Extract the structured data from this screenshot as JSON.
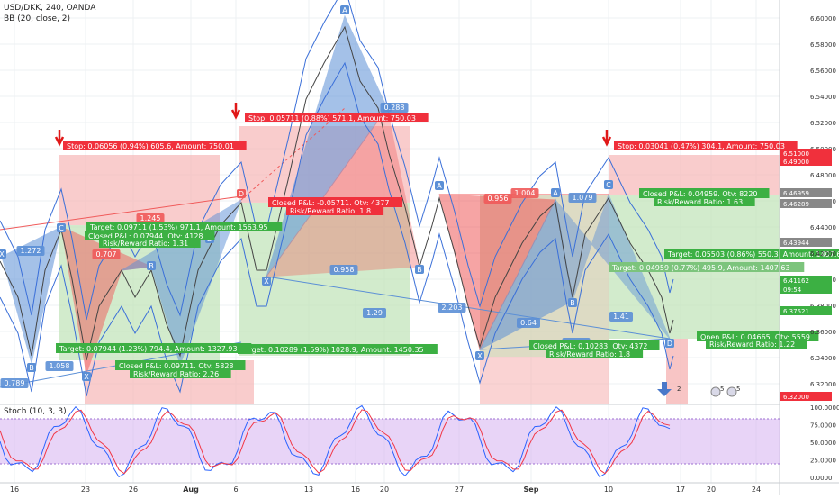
{
  "header": {
    "symbol_line": "USD/DKK, 240, OANDA",
    "indicator_line": "BB (20, close, 2)",
    "stoch_label": "Stoch (10, 3, 3)"
  },
  "colors": {
    "stop_zone": "#f6b6b6",
    "target_zone": "#bfe3b6",
    "label_red": "#f23645",
    "label_green": "#089981",
    "pattern_blue": "#5b8fd6",
    "pattern_red": "#f05a5a",
    "stoch_band": "#d9b8f2",
    "price_tag_red": "#f0303c",
    "price_tag_green": "#3cb043"
  },
  "price_axis": {
    "ticks": [
      "6.60000",
      "6.58000",
      "6.56000",
      "6.54000",
      "6.52000",
      "6.50000",
      "6.48000",
      "6.46000",
      "6.44000",
      "6.42000",
      "6.40000",
      "6.38000",
      "6.36000",
      "6.34000",
      "6.32000"
    ],
    "tags": [
      {
        "text": "6.51000",
        "kind": "red"
      },
      {
        "text": "6.49000",
        "kind": "red"
      },
      {
        "text": "6.46959",
        "kind": "grey"
      },
      {
        "text": "6.46289",
        "kind": "grey"
      },
      {
        "text": "6.43944",
        "kind": "grey"
      },
      {
        "text": "6.41162",
        "kind": "green"
      },
      {
        "text": "6.40554",
        "kind": "green"
      },
      {
        "text": "09:54",
        "kind": "green"
      },
      {
        "text": "6.37521",
        "kind": "green"
      },
      {
        "text": "6.32000",
        "kind": "red"
      }
    ]
  },
  "stoch_axis": {
    "ticks": [
      "100.0000",
      "75.0000",
      "50.0000",
      "25.0000",
      "0.0000"
    ]
  },
  "time_axis": {
    "labels": [
      "16",
      "23",
      "26",
      "Aug",
      "6",
      "13",
      "16",
      "20",
      "27",
      "Sep",
      "10",
      "17",
      "20",
      "24"
    ]
  },
  "trades": [
    {
      "stop": "Stop: 0.06056 (0.94%) 605.6, Amount: 750.01",
      "target": "Target: 0.09711 (1.53%) 971.1, Amount: 1563.95",
      "closed": "Closed P&L: 0.07944, Qty: 4128",
      "rr": "Risk/Reward Ratio: 1.31"
    },
    {
      "stop": "Stop: 0.05711 (0.88%) 571.1, Amount: 750.03",
      "target": "Target: 0.10289 (1.59%) 1028.9, Amount: 1450.35",
      "closed": "Closed P&L: -0.05711, Qty: 4377",
      "rr": "Risk/Reward Ratio: 1.8"
    },
    {
      "target2": "Target: 0.07944 (1.23%) 794.4, Amount: 1327.93",
      "closed2": "Closed P&L: 0.09711, Qty: 5828",
      "rr2": "Risk/Reward Ratio: 2.26"
    },
    {
      "stop": "Stop: 0.03041 (0.47%) 304.1, Amount: 750.03",
      "closed": "Closed P&L: 0.04959, Qty: 8220",
      "rr": "Risk/Reward Ratio: 1.63"
    },
    {
      "target": "Target: 0.05503 (0.86%) 550.3, Amount: 1407.63",
      "target_b": "Target: 0.04959 (0.77%) 495.9, Amount: 1407.63",
      "open": "Open P&L: 0.04665, Qty: 5559",
      "rr": "Risk/Reward Ratio: 1.22"
    },
    {
      "closed": "Closed P&L: 0.10283, Qty: 4372",
      "rr": "Risk/Reward Ratio: 1.8"
    }
  ],
  "pattern_points": [
    "A",
    "B",
    "C",
    "D",
    "X",
    "X",
    "B",
    "C",
    "D",
    "X",
    "A",
    "B",
    "C",
    "D",
    "A",
    "B",
    "X",
    "D"
  ],
  "ratios": [
    "1.272",
    "0.707",
    "1.058",
    "0.789",
    "1.245",
    "0.958",
    "1.29",
    "2.203",
    "0.288",
    "0.956",
    "1.004",
    "1.079",
    "0.64",
    "1.41",
    "0.922"
  ],
  "bottom_icons": [
    "2",
    "5",
    "5"
  ]
}
